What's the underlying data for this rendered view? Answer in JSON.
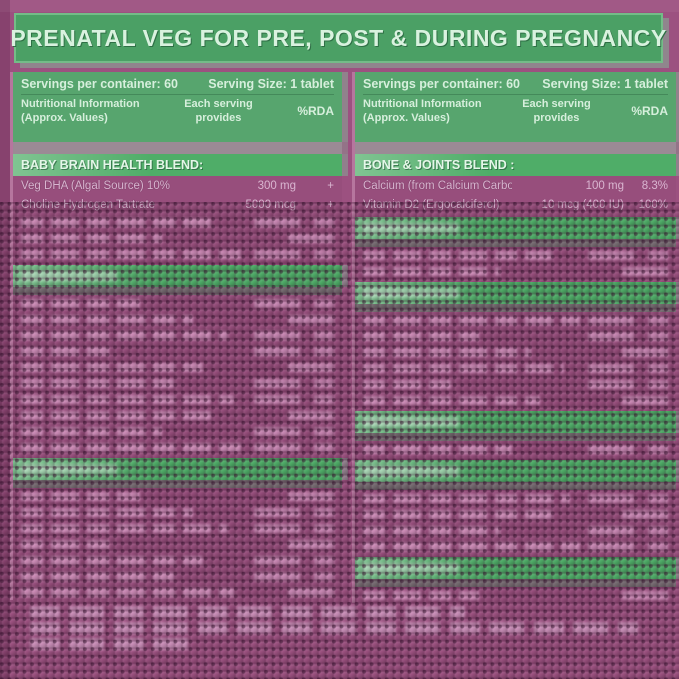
{
  "title": "PRENATAL VEG FOR PRE, POST & DURING PREGNANCY",
  "colors": {
    "background_purple": "#9C5180",
    "title_green": "#4BA065",
    "panel_green": "#57A56E",
    "section_band_green": "#4FAD68",
    "band_shadow_gray": "#6F706F",
    "title_text": "#D9F2DF",
    "row_text": "#D9B5D0"
  },
  "panels": [
    {
      "side": "left",
      "servings_label": "Servings per container: 60",
      "serving_size_label": "Serving Size: 1 tablet",
      "info_line1": "Nutritional Information",
      "info_line2": "(Approx. Values)",
      "provides_line1": "Each serving",
      "provides_line2": "provides",
      "rda_label": "%RDA",
      "sections": [
        {
          "header": "BABY BRAIN HEALTH BLEND:",
          "rows": [
            {
              "name": "Veg DHA (Algal Source) 10%",
              "amount": "300 mg",
              "rda": "+"
            },
            {
              "name": "Choline Hydrogen Tartrate",
              "amount": "5000 mcg",
              "rda": "+"
            }
          ],
          "illegible_row_count": 3
        },
        {
          "header": "",
          "header_illegible": true,
          "rows": [],
          "illegible_row_count": 10
        },
        {
          "header": "",
          "header_illegible": true,
          "rows": [],
          "illegible_row_count": 7
        }
      ]
    },
    {
      "side": "right",
      "servings_label": "Servings per container: 60",
      "serving_size_label": "Serving Size: 1 tablet",
      "info_line1": "Nutritional Information",
      "info_line2": "(Approx. Values)",
      "provides_line1": "Each serving",
      "provides_line2": "provides",
      "rda_label": "%RDA",
      "sections": [
        {
          "header": "BONE & JOINTS BLEND :",
          "rows": [
            {
              "name": "Calcium (from Calcium Carbonate)",
              "amount": "100 mg",
              "rda": "8.3%"
            },
            {
              "name": "Vitamin D2 (Ergocalciferol)",
              "amount": "10 mcg (400 IU)",
              "rda": "100%"
            }
          ],
          "illegible_row_count": 0
        },
        {
          "header": "",
          "header_illegible": true,
          "rows": [],
          "illegible_row_count": 2
        },
        {
          "header": "",
          "header_illegible": true,
          "rows": [],
          "illegible_row_count": 6
        },
        {
          "header": "",
          "header_illegible": true,
          "rows": [],
          "illegible_row_count": 1
        },
        {
          "header": "",
          "header_illegible": true,
          "rows": [],
          "illegible_row_count": 4
        },
        {
          "header": "",
          "header_illegible": true,
          "rows": [],
          "illegible_row_count": 1
        }
      ]
    }
  ],
  "footnotes": {
    "illegible_line_count": 3
  }
}
